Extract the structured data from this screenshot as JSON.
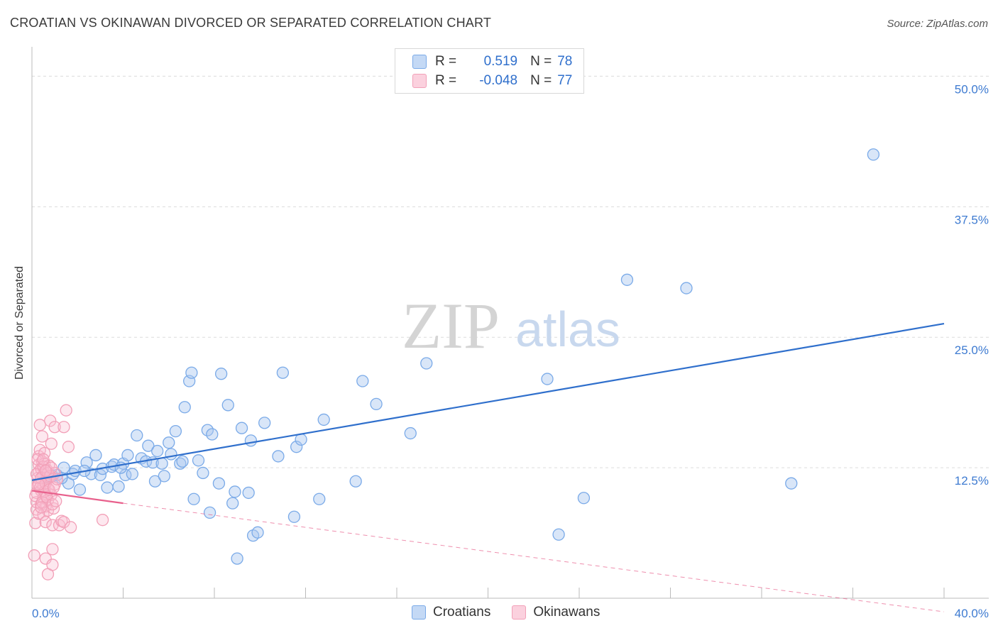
{
  "header": {
    "title": "CROATIAN VS OKINAWAN DIVORCED OR SEPARATED CORRELATION CHART",
    "source": "Source: ZipAtlas.com"
  },
  "watermark": {
    "zip": "ZIP",
    "atlas": "atlas"
  },
  "legend": {
    "r_label": "R =",
    "n_label": "N =",
    "rows": [
      {
        "name": "Croatians",
        "r": "0.519",
        "n": "78",
        "color": "#7aaae8"
      },
      {
        "name": "Okinawans",
        "r": "-0.048",
        "n": "77",
        "color": "#f2a0b8"
      }
    ]
  },
  "chart_data": {
    "type": "scatter",
    "title": "CROATIAN VS OKINAWAN DIVORCED OR SEPARATED CORRELATION CHART",
    "xlabel": "",
    "ylabel": "Divorced or Separated",
    "xlim": [
      0,
      40
    ],
    "ylim": [
      0,
      52
    ],
    "x_tick_labels": [
      "0.0%",
      "40.0%"
    ],
    "y_ticks": [
      12.5,
      25.0,
      37.5,
      50.0
    ],
    "y_tick_labels": [
      "12.5%",
      "25.0%",
      "37.5%",
      "50.0%"
    ],
    "grid": true,
    "legend_position": "top-center",
    "series": [
      {
        "name": "Croatians",
        "color": "#7aaae8",
        "line_color": "#2f6fcc",
        "trend": {
          "x": [
            0,
            40
          ],
          "y": [
            11.3,
            26.3
          ]
        },
        "points": [
          [
            0.6,
            11.6
          ],
          [
            0.9,
            11.7
          ],
          [
            1.1,
            11.8
          ],
          [
            1.4,
            12.5
          ],
          [
            1.6,
            11.0
          ],
          [
            1.8,
            11.9
          ],
          [
            1.9,
            12.2
          ],
          [
            2.1,
            10.4
          ],
          [
            2.4,
            13.0
          ],
          [
            2.6,
            11.9
          ],
          [
            2.8,
            13.7
          ],
          [
            3.0,
            11.8
          ],
          [
            3.1,
            12.4
          ],
          [
            3.3,
            10.6
          ],
          [
            3.5,
            12.6
          ],
          [
            3.6,
            12.8
          ],
          [
            3.8,
            10.7
          ],
          [
            4.0,
            12.9
          ],
          [
            4.1,
            11.8
          ],
          [
            4.2,
            13.7
          ],
          [
            4.4,
            11.9
          ],
          [
            4.6,
            15.6
          ],
          [
            4.8,
            13.4
          ],
          [
            5.0,
            13.1
          ],
          [
            5.1,
            14.6
          ],
          [
            5.3,
            13.0
          ],
          [
            5.4,
            11.2
          ],
          [
            5.5,
            14.1
          ],
          [
            5.7,
            12.9
          ],
          [
            5.8,
            11.7
          ],
          [
            6.0,
            14.9
          ],
          [
            6.1,
            13.8
          ],
          [
            6.3,
            16.0
          ],
          [
            6.5,
            12.9
          ],
          [
            6.7,
            18.3
          ],
          [
            6.9,
            20.8
          ],
          [
            7.0,
            21.6
          ],
          [
            7.1,
            9.5
          ],
          [
            7.3,
            13.2
          ],
          [
            7.5,
            12.0
          ],
          [
            7.7,
            16.1
          ],
          [
            7.8,
            8.2
          ],
          [
            7.9,
            15.7
          ],
          [
            8.2,
            11.0
          ],
          [
            8.3,
            21.5
          ],
          [
            8.6,
            18.5
          ],
          [
            8.8,
            9.1
          ],
          [
            8.9,
            10.2
          ],
          [
            9.0,
            3.8
          ],
          [
            9.2,
            16.3
          ],
          [
            9.5,
            10.1
          ],
          [
            9.6,
            15.1
          ],
          [
            9.7,
            6.0
          ],
          [
            9.9,
            6.3
          ],
          [
            10.2,
            16.8
          ],
          [
            11.0,
            21.6
          ],
          [
            11.5,
            7.8
          ],
          [
            11.6,
            14.5
          ],
          [
            11.8,
            15.2
          ],
          [
            12.6,
            9.5
          ],
          [
            12.8,
            17.1
          ],
          [
            14.2,
            11.2
          ],
          [
            14.5,
            20.8
          ],
          [
            15.1,
            18.6
          ],
          [
            16.6,
            15.8
          ],
          [
            17.3,
            22.5
          ],
          [
            22.6,
            21.0
          ],
          [
            23.1,
            6.1
          ],
          [
            24.2,
            9.6
          ],
          [
            26.1,
            30.5
          ],
          [
            28.7,
            29.7
          ],
          [
            33.3,
            11.0
          ],
          [
            36.9,
            42.5
          ],
          [
            1.3,
            11.5
          ],
          [
            2.3,
            12.2
          ],
          [
            3.9,
            12.5
          ],
          [
            6.6,
            13.1
          ],
          [
            10.8,
            13.6
          ]
        ]
      },
      {
        "name": "Okinawans",
        "color": "#f2a0b8",
        "line_color": "#e8608c",
        "trend": {
          "x": [
            0,
            4
          ],
          "y": [
            10.3,
            9.1
          ]
        },
        "trend_dashed": {
          "x": [
            4,
            40
          ],
          "y": [
            9.1,
            -1.3
          ]
        },
        "points": [
          [
            0.1,
            4.1
          ],
          [
            0.15,
            7.2
          ],
          [
            0.2,
            8.5
          ],
          [
            0.2,
            9.2
          ],
          [
            0.2,
            10.1
          ],
          [
            0.25,
            10.8
          ],
          [
            0.25,
            11.5
          ],
          [
            0.3,
            12.1
          ],
          [
            0.3,
            12.8
          ],
          [
            0.3,
            13.6
          ],
          [
            0.35,
            14.2
          ],
          [
            0.35,
            16.6
          ],
          [
            0.4,
            9.0
          ],
          [
            0.4,
            10.3
          ],
          [
            0.4,
            11.0
          ],
          [
            0.4,
            12.4
          ],
          [
            0.45,
            13.1
          ],
          [
            0.45,
            15.5
          ],
          [
            0.5,
            8.0
          ],
          [
            0.5,
            9.6
          ],
          [
            0.5,
            10.7
          ],
          [
            0.5,
            11.8
          ],
          [
            0.55,
            12.9
          ],
          [
            0.55,
            13.9
          ],
          [
            0.6,
            3.8
          ],
          [
            0.6,
            7.3
          ],
          [
            0.6,
            8.8
          ],
          [
            0.6,
            10.0
          ],
          [
            0.65,
            11.3
          ],
          [
            0.65,
            12.3
          ],
          [
            0.7,
            2.3
          ],
          [
            0.7,
            8.4
          ],
          [
            0.7,
            9.4
          ],
          [
            0.7,
            10.5
          ],
          [
            0.75,
            11.6
          ],
          [
            0.75,
            12.7
          ],
          [
            0.8,
            17.0
          ],
          [
            0.85,
            14.8
          ],
          [
            0.85,
            9.9
          ],
          [
            0.9,
            3.2
          ],
          [
            0.9,
            4.7
          ],
          [
            0.9,
            7.0
          ],
          [
            0.95,
            8.6
          ],
          [
            1.0,
            10.9
          ],
          [
            1.0,
            12.0
          ],
          [
            1.0,
            16.4
          ],
          [
            1.2,
            7.0
          ],
          [
            1.3,
            7.4
          ],
          [
            1.4,
            7.3
          ],
          [
            1.4,
            16.4
          ],
          [
            1.5,
            18.0
          ],
          [
            1.6,
            14.5
          ],
          [
            1.7,
            6.8
          ],
          [
            3.1,
            7.5
          ],
          [
            0.15,
            9.8
          ],
          [
            0.2,
            11.9
          ],
          [
            0.25,
            13.3
          ],
          [
            0.3,
            8.1
          ],
          [
            0.35,
            10.6
          ],
          [
            0.4,
            11.5
          ],
          [
            0.45,
            9.2
          ],
          [
            0.5,
            12.6
          ],
          [
            0.55,
            10.2
          ],
          [
            0.6,
            11.0
          ],
          [
            0.65,
            9.7
          ],
          [
            0.7,
            12.0
          ],
          [
            0.75,
            10.4
          ],
          [
            0.8,
            11.7
          ],
          [
            0.85,
            12.5
          ],
          [
            0.9,
            9.0
          ],
          [
            0.95,
            10.6
          ],
          [
            1.05,
            9.3
          ],
          [
            1.1,
            11.4
          ],
          [
            0.3,
            10.9
          ],
          [
            0.4,
            8.7
          ],
          [
            0.5,
            13.3
          ],
          [
            0.6,
            12.2
          ]
        ]
      }
    ]
  }
}
